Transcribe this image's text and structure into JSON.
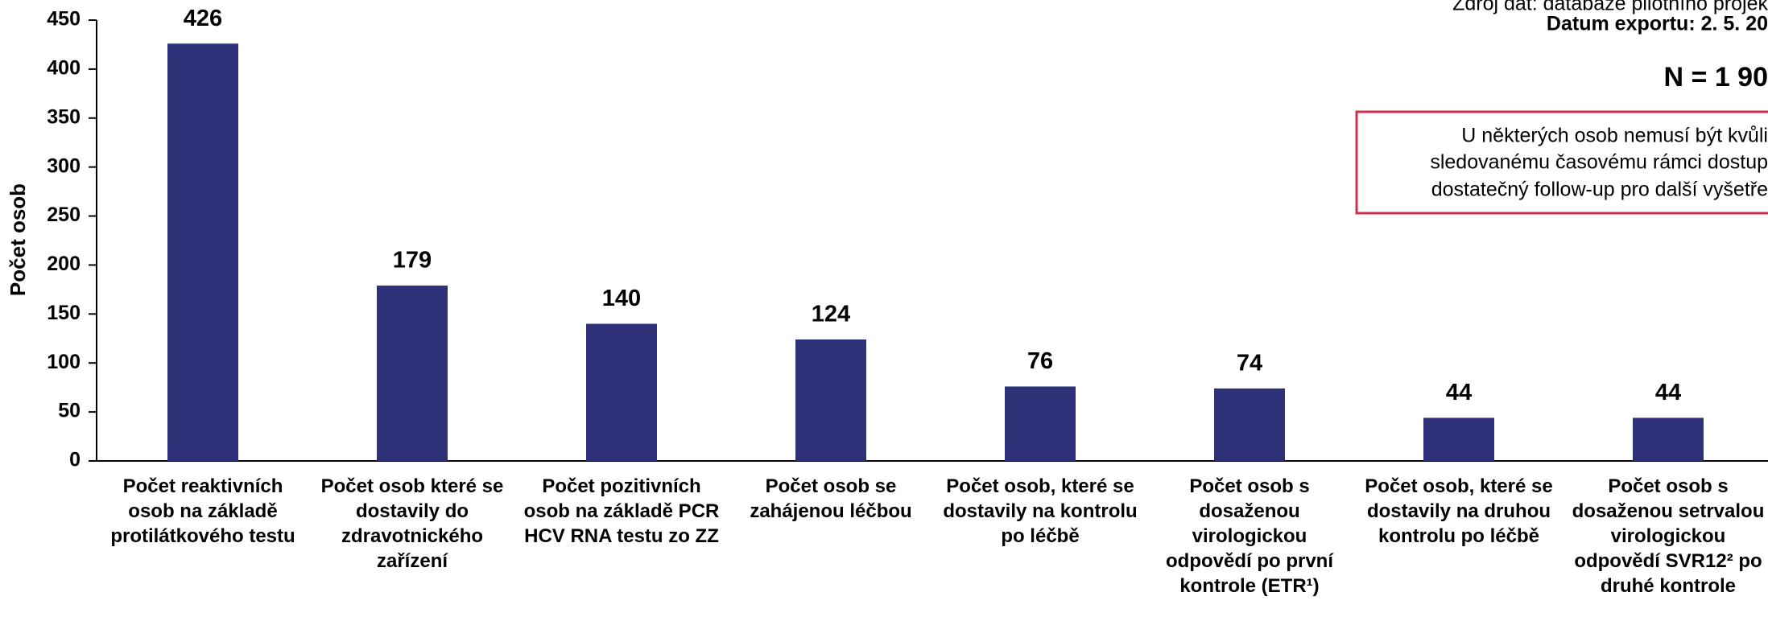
{
  "chart_data": {
    "type": "bar",
    "y_label": "Počet osob",
    "categories": [
      "Počet reaktivních osob na základě protilátkového testu",
      "Počet osob které se dostavily do zdravotnického zařízení",
      "Počet pozitivních osob na základě PCR HCV RNA testu zo ZZ",
      "Počet osob se zahájenou léčbou",
      "Počet osob, které se dostavily na kontrolu po léčbě",
      "Počet osob s dosaženou virologickou odpovědí po první kontrole (ETR¹)",
      "Počet osob, které se dostavily na druhou kontrolu po léčbě",
      "Počet osob s dosaženou setrvalou virologickou odpovědí SVR12² po druhé kontrole"
    ],
    "values": [
      426,
      179,
      140,
      124,
      76,
      74,
      44,
      44
    ],
    "color": "#2e3078",
    "ylim": [
      0,
      450
    ],
    "yticks": [
      0,
      50,
      100,
      150,
      200,
      250,
      300,
      350,
      400,
      450
    ],
    "grid": false,
    "annotations": {
      "source": "Zdroj dat: databáze pilotního projek",
      "export_date": "Datum exportu: 2. 5. 20",
      "n": "N = 1 90",
      "note_lines": [
        "U některých osob nemusí být kvůli",
        "sledovanému časovému rámci dostup",
        "dostatečný follow-up pro další vyšetře"
      ]
    }
  }
}
